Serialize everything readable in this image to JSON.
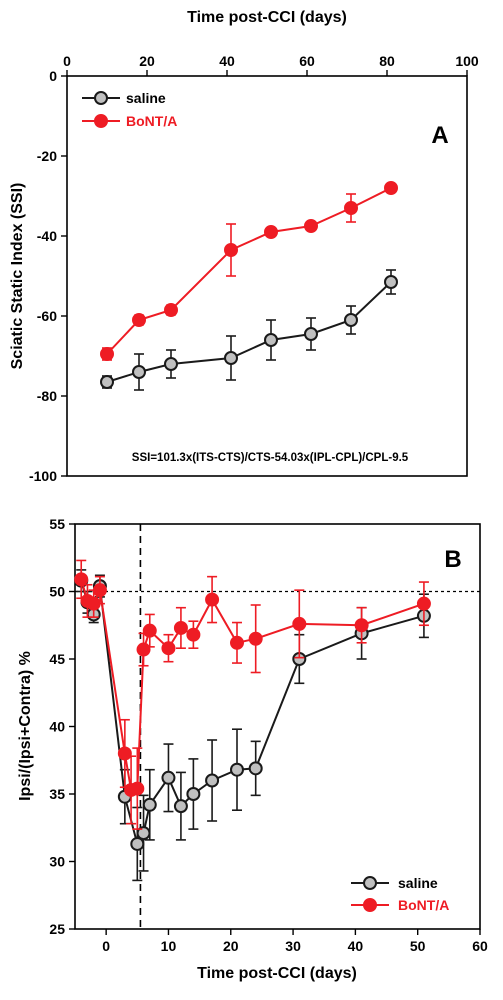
{
  "colors": {
    "saline_line": "#1a1a1a",
    "saline_marker": "#c0c0c0",
    "bont": "#ee1c24"
  },
  "chart_data": [
    {
      "type": "line",
      "panel_label": "A",
      "xlabel": "Time post-CCI (days)",
      "ylabel": "Sciatic Static Index (SSI)",
      "xlim": [
        0,
        100
      ],
      "ylim": [
        -100,
        0
      ],
      "xticks": [
        0,
        20,
        40,
        60,
        80,
        100
      ],
      "yticks": [
        0,
        -20,
        -40,
        -60,
        -80,
        -100
      ],
      "x_axis_position": "top",
      "legend_position": "top-left",
      "annotation": "SSI=101.3x(ITS-CTS)/CTS-54.03x(IPL-CPL)/CPL-9.5",
      "series": [
        {
          "name": "saline",
          "x": [
            10,
            18,
            26,
            41,
            51,
            61,
            71,
            81
          ],
          "y": [
            -76.5,
            -74,
            -72,
            -70.5,
            -66,
            -64.5,
            -61,
            -51.5
          ],
          "err": [
            1.5,
            4.5,
            3.5,
            5.5,
            5,
            4,
            3.5,
            3
          ]
        },
        {
          "name": "BoNT/A",
          "x": [
            10,
            18,
            26,
            41,
            51,
            61,
            71,
            81
          ],
          "y": [
            -69.5,
            -61,
            -58.5,
            -43.5,
            -39,
            -37.5,
            -33,
            -28
          ],
          "err": [
            1.5,
            1.2,
            1.2,
            6.5,
            1,
            1,
            3.5,
            1
          ]
        }
      ]
    },
    {
      "type": "line",
      "panel_label": "B",
      "xlabel": "Time post-CCI (days)",
      "ylabel": "Ipsi/(Ipsi+Contra) %",
      "xlim": [
        -5,
        60
      ],
      "ylim": [
        25,
        55
      ],
      "xticks": [
        0,
        10,
        20,
        30,
        40,
        50,
        60
      ],
      "yticks": [
        25,
        30,
        35,
        40,
        45,
        50,
        55
      ],
      "reference_hline": 50,
      "reference_vline": 5.5,
      "legend_position": "bottom-right",
      "series": [
        {
          "name": "saline",
          "x": [
            -4,
            -3,
            -2,
            -1,
            3,
            5,
            6,
            7,
            10,
            12,
            14,
            17,
            21,
            24,
            31,
            41,
            51
          ],
          "y": [
            50.8,
            49.2,
            48.3,
            50.4,
            34.8,
            31.3,
            32.1,
            34.2,
            36.2,
            34.1,
            35,
            36,
            36.8,
            36.9,
            45,
            46.9,
            48.2
          ],
          "err": [
            0.8,
            0.8,
            0.6,
            0.8,
            2,
            2.7,
            2.8,
            2.6,
            2.5,
            2.5,
            2.6,
            3,
            3,
            2,
            1.8,
            1.9,
            1.6
          ]
        },
        {
          "name": "BoNT/A",
          "x": [
            -4,
            -3,
            -2,
            -1,
            3,
            4,
            5,
            6,
            7,
            10,
            12,
            14,
            17,
            21,
            24,
            31,
            41,
            51
          ],
          "y": [
            50.9,
            49.3,
            49.1,
            50.1,
            38,
            35.3,
            35.4,
            45.7,
            47.1,
            45.8,
            47.3,
            46.8,
            49.4,
            46.2,
            46.5,
            47.6,
            47.5,
            49.1
          ],
          "err": [
            1.4,
            1.2,
            1,
            1,
            2.5,
            2.5,
            3,
            1.2,
            1.2,
            1,
            1.5,
            1,
            1.7,
            1.5,
            2.5,
            2.5,
            1.3,
            1.6
          ]
        }
      ]
    }
  ]
}
